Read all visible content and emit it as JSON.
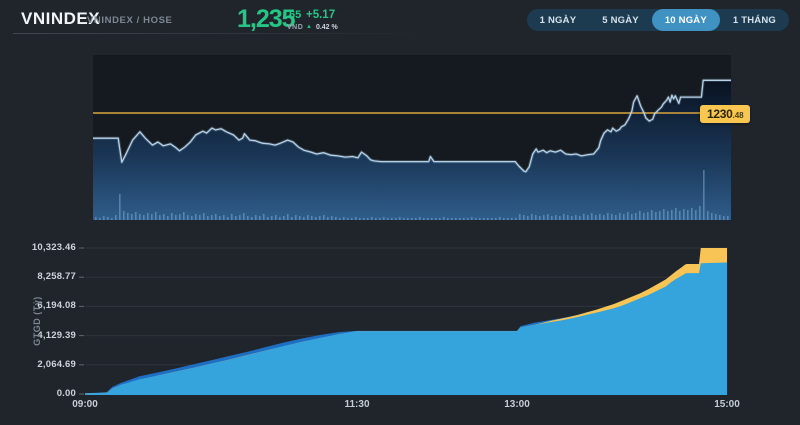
{
  "header": {
    "title": "VNINDEX",
    "subtitle": "VNINDEX / HOSE"
  },
  "quote": {
    "price_int": "1,235",
    "price_dec": ".65",
    "currency": "VND",
    "change": "+5.17",
    "change_percent": "0.42 %",
    "up_arrow": "▲"
  },
  "ranges": {
    "items": [
      {
        "label": "1 NGÀY",
        "active": false
      },
      {
        "label": "5 NGÀY",
        "active": false
      },
      {
        "label": "10 NGÀY",
        "active": true
      },
      {
        "label": "1 THÁNG",
        "active": false
      }
    ]
  },
  "reference_label": {
    "int": "1230",
    "dec": ".48"
  },
  "colors": {
    "accent_green": "#25c685",
    "gold_line": "#d9a43c",
    "badge_bg": "#f9c74f",
    "price_line": "#b5d2e9",
    "button_active_bg": "#3f92c2",
    "panel_bg": "#151a21",
    "volume_bar": "rgba(125,178,224,0.5)"
  },
  "chart_data": [
    {
      "type": "line",
      "name": "VNINDEX intraday price",
      "x_tick_labels": [
        "09:00",
        "11:30",
        "13:00",
        "15:00"
      ],
      "time_axis": {
        "t": [
          0,
          150,
          240,
          360
        ],
        "frac": [
          0,
          0.4237,
          0.6729,
          1
        ]
      },
      "reference_line": {
        "value": 1230.48,
        "color": "#d9a43c"
      },
      "y_range": [
        1213.6,
        1239.7
      ],
      "last_price": 1235.65,
      "series": [
        {
          "name": "VNINDEX",
          "points": [
            [
              0,
              1226.5
            ],
            [
              14,
              1226.5
            ],
            [
              16,
              1222.7
            ],
            [
              18,
              1223.8
            ],
            [
              22,
              1226.2
            ],
            [
              26,
              1227.5
            ],
            [
              29,
              1226.5
            ],
            [
              33,
              1225.4
            ],
            [
              36,
              1225.9
            ],
            [
              39,
              1225.3
            ],
            [
              43,
              1225.6
            ],
            [
              46,
              1225.0
            ],
            [
              48,
              1224.5
            ],
            [
              51,
              1225.1
            ],
            [
              54,
              1225.9
            ],
            [
              57,
              1227.0
            ],
            [
              61,
              1227.6
            ],
            [
              63,
              1227.3
            ],
            [
              66,
              1228.1
            ],
            [
              68,
              1227.8
            ],
            [
              71,
              1228.0
            ],
            [
              74,
              1227.5
            ],
            [
              78,
              1227.0
            ],
            [
              81,
              1226.2
            ],
            [
              83,
              1226.5
            ],
            [
              84,
              1227.2
            ],
            [
              87,
              1226.2
            ],
            [
              90,
              1226.1
            ],
            [
              94,
              1225.7
            ],
            [
              98,
              1225.6
            ],
            [
              101,
              1225.4
            ],
            [
              104,
              1225.7
            ],
            [
              108,
              1226.2
            ],
            [
              111,
              1225.9
            ],
            [
              114,
              1225.1
            ],
            [
              117,
              1224.6
            ],
            [
              121,
              1224.3
            ],
            [
              124,
              1224.0
            ],
            [
              128,
              1224.2
            ],
            [
              132,
              1223.8
            ],
            [
              136,
              1223.7
            ],
            [
              140,
              1223.5
            ],
            [
              144,
              1223.6
            ],
            [
              147,
              1223.4
            ],
            [
              149,
              1224.3
            ],
            [
              152,
              1223.7
            ],
            [
              154,
              1223.1
            ],
            [
              156,
              1222.9
            ],
            [
              160,
              1222.8
            ],
            [
              187,
              1222.8
            ],
            [
              188,
              1223.6
            ],
            [
              190,
              1222.8
            ],
            [
              236,
              1222.8
            ],
            [
              238,
              1222.1
            ],
            [
              241,
              1221.3
            ],
            [
              242,
              1221.2
            ],
            [
              244,
              1222.0
            ],
            [
              246,
              1224.0
            ],
            [
              248,
              1224.8
            ],
            [
              249,
              1224.3
            ],
            [
              252,
              1224.6
            ],
            [
              254,
              1224.2
            ],
            [
              256,
              1224.5
            ],
            [
              259,
              1224.3
            ],
            [
              262,
              1224.6
            ],
            [
              265,
              1224.0
            ],
            [
              268,
              1223.9
            ],
            [
              271,
              1224.0
            ],
            [
              274,
              1223.7
            ],
            [
              278,
              1223.9
            ],
            [
              281,
              1224.0
            ],
            [
              284,
              1225.0
            ],
            [
              285,
              1226.1
            ],
            [
              287,
              1227.3
            ],
            [
              289,
              1227.8
            ],
            [
              291,
              1227.5
            ],
            [
              292,
              1228.1
            ],
            [
              294,
              1227.6
            ],
            [
              296,
              1227.9
            ],
            [
              297,
              1228.3
            ],
            [
              299,
              1228.6
            ],
            [
              301,
              1229.5
            ],
            [
              303,
              1230.8
            ],
            [
              304,
              1232.2
            ],
            [
              306,
              1233.2
            ],
            [
              308,
              1231.6
            ],
            [
              310,
              1230.5
            ],
            [
              311,
              1229.7
            ],
            [
              313,
              1229.2
            ],
            [
              315,
              1229.5
            ],
            [
              316,
              1230.3
            ],
            [
              318,
              1230.9
            ],
            [
              320,
              1231.4
            ],
            [
              321,
              1231.9
            ],
            [
              323,
              1232.5
            ],
            [
              324,
              1233.0
            ],
            [
              325,
              1232.2
            ],
            [
              326,
              1233.3
            ],
            [
              327,
              1232.7
            ],
            [
              328,
              1233.2
            ],
            [
              330,
              1232.0
            ],
            [
              331,
              1233.0
            ],
            [
              333,
              1233.0
            ],
            [
              343,
              1233.0
            ],
            [
              344,
              1235.65
            ],
            [
              360,
              1235.65
            ]
          ]
        }
      ],
      "volume_bars": [
        3,
        2,
        4,
        3,
        2,
        5,
        26,
        9,
        7,
        6,
        8,
        6,
        5,
        7,
        6,
        8,
        5,
        6,
        4,
        7,
        5,
        6,
        8,
        5,
        4,
        6,
        5,
        7,
        4,
        5,
        6,
        4,
        5,
        3,
        6,
        4,
        5,
        7,
        4,
        3,
        5,
        4,
        6,
        3,
        4,
        5,
        3,
        4,
        6,
        3,
        5,
        4,
        3,
        5,
        4,
        3,
        4,
        5,
        3,
        4,
        3,
        2,
        3,
        2,
        2,
        3,
        2,
        2,
        2,
        3,
        2,
        2,
        3,
        2,
        2,
        2,
        3,
        2,
        2,
        2,
        2,
        3,
        2,
        2,
        2,
        2,
        2,
        3,
        2,
        2,
        2,
        2,
        2,
        2,
        3,
        2,
        2,
        2,
        2,
        2,
        2,
        3,
        2,
        2,
        2,
        2,
        6,
        5,
        4,
        6,
        5,
        4,
        5,
        6,
        4,
        5,
        4,
        6,
        5,
        4,
        5,
        4,
        6,
        5,
        7,
        5,
        6,
        5,
        7,
        6,
        5,
        7,
        6,
        8,
        6,
        7,
        9,
        7,
        8,
        10,
        8,
        9,
        11,
        9,
        10,
        12,
        9,
        11,
        10,
        12,
        10,
        14,
        50,
        9,
        7,
        6,
        5,
        4,
        4
      ]
    },
    {
      "type": "area",
      "name": "Cumulative trading value",
      "ylabel": "GTGD (Tỷ)",
      "x_tick_labels": [
        "09:00",
        "11:30",
        "13:00",
        "15:00"
      ],
      "y_ticks": [
        0,
        2064.69,
        4129.39,
        6194.08,
        8258.77,
        10323.46
      ],
      "y_tick_labels": [
        "0.00",
        "2,064.69",
        "4,129.39",
        "6,194.08",
        "8,258.77",
        "10,323.46"
      ],
      "y_max": 10323.46,
      "series": [
        {
          "name": "reference-cumulative",
          "color": "#1e6fc4",
          "points": [
            [
              0,
              60
            ],
            [
              12,
              130
            ],
            [
              15,
              500
            ],
            [
              20,
              800
            ],
            [
              25,
              1020
            ],
            [
              30,
              1250
            ],
            [
              40,
              1520
            ],
            [
              50,
              1800
            ],
            [
              60,
              2100
            ],
            [
              70,
              2400
            ],
            [
              80,
              2700
            ],
            [
              90,
              3000
            ],
            [
              100,
              3330
            ],
            [
              110,
              3650
            ],
            [
              120,
              3930
            ],
            [
              130,
              4180
            ],
            [
              140,
              4380
            ],
            [
              148,
              4450
            ],
            [
              150,
              4460
            ],
            [
              240,
              4460
            ],
            [
              242,
              4800
            ],
            [
              250,
              5050
            ],
            [
              255,
              5150
            ],
            [
              260,
              5250
            ],
            [
              265,
              5350
            ],
            [
              270,
              5470
            ],
            [
              275,
              5600
            ],
            [
              280,
              5740
            ],
            [
              285,
              5880
            ],
            [
              290,
              6020
            ],
            [
              295,
              6170
            ],
            [
              300,
              6350
            ],
            [
              305,
              6580
            ],
            [
              310,
              6800
            ],
            [
              315,
              7050
            ],
            [
              320,
              7300
            ],
            [
              325,
              7550
            ],
            [
              330,
              7900
            ],
            [
              335,
              8250
            ],
            [
              340,
              8550
            ],
            [
              345,
              8900
            ],
            [
              350,
              9050
            ],
            [
              355,
              9150
            ],
            [
              360,
              9250
            ]
          ]
        },
        {
          "name": "upper-band",
          "color": "#f8c455",
          "points": [
            [
              0,
              40
            ],
            [
              12,
              90
            ],
            [
              15,
              380
            ],
            [
              20,
              650
            ],
            [
              40,
              1300
            ],
            [
              60,
              1850
            ],
            [
              80,
              2450
            ],
            [
              100,
              3080
            ],
            [
              120,
              3700
            ],
            [
              140,
              4230
            ],
            [
              150,
              4450
            ],
            [
              240,
              4450
            ],
            [
              242,
              4700
            ],
            [
              250,
              4900
            ],
            [
              255,
              5050
            ],
            [
              260,
              5200
            ],
            [
              265,
              5320
            ],
            [
              270,
              5450
            ],
            [
              275,
              5600
            ],
            [
              280,
              5780
            ],
            [
              285,
              5950
            ],
            [
              290,
              6150
            ],
            [
              295,
              6350
            ],
            [
              300,
              6600
            ],
            [
              305,
              6850
            ],
            [
              310,
              7100
            ],
            [
              315,
              7400
            ],
            [
              320,
              7750
            ],
            [
              325,
              8100
            ],
            [
              328,
              8400
            ],
            [
              331,
              8700
            ],
            [
              334,
              8950
            ],
            [
              336,
              9150
            ],
            [
              337,
              9190
            ],
            [
              344,
              9190
            ],
            [
              345,
              10323
            ],
            [
              360,
              10323
            ]
          ]
        },
        {
          "name": "today-cumulative",
          "color": "#35a3dc",
          "points": [
            [
              0,
              40
            ],
            [
              12,
              90
            ],
            [
              15,
              380
            ],
            [
              20,
              650
            ],
            [
              25,
              850
            ],
            [
              30,
              1050
            ],
            [
              40,
              1300
            ],
            [
              50,
              1570
            ],
            [
              60,
              1850
            ],
            [
              70,
              2150
            ],
            [
              80,
              2450
            ],
            [
              90,
              2750
            ],
            [
              100,
              3080
            ],
            [
              110,
              3400
            ],
            [
              120,
              3700
            ],
            [
              130,
              3980
            ],
            [
              140,
              4230
            ],
            [
              148,
              4420
            ],
            [
              150,
              4450
            ],
            [
              240,
              4450
            ],
            [
              242,
              4700
            ],
            [
              250,
              4900
            ],
            [
              255,
              5000
            ],
            [
              260,
              5100
            ],
            [
              265,
              5200
            ],
            [
              270,
              5320
            ],
            [
              275,
              5450
            ],
            [
              280,
              5600
            ],
            [
              285,
              5750
            ],
            [
              290,
              5900
            ],
            [
              295,
              6050
            ],
            [
              300,
              6250
            ],
            [
              305,
              6500
            ],
            [
              310,
              6750
            ],
            [
              315,
              7000
            ],
            [
              320,
              7300
            ],
            [
              325,
              7600
            ],
            [
              328,
              7900
            ],
            [
              331,
              8150
            ],
            [
              334,
              8350
            ],
            [
              336,
              8500
            ],
            [
              337,
              8550
            ],
            [
              344,
              8550
            ],
            [
              345,
              9250
            ],
            [
              360,
              9300
            ]
          ]
        }
      ]
    }
  ]
}
